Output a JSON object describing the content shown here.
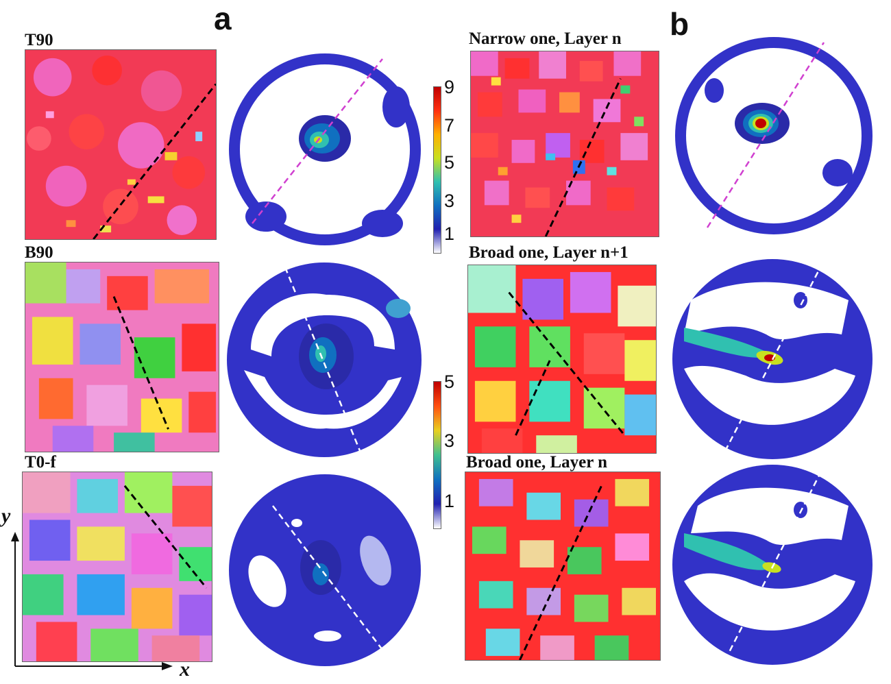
{
  "panel_labels": {
    "a": "a",
    "b": "b"
  },
  "map_labels": {
    "t90": "T90",
    "b90": "B90",
    "t0f": "T0-f",
    "narrow_n": "Narrow one, Layer n",
    "broad_n1": "Broad one, Layer n+1",
    "broad_n": "Broad one, Layer n"
  },
  "colorbar_upper": {
    "ticks": [
      "9",
      "7",
      "5",
      "3",
      "1"
    ],
    "colors": [
      "#c00000",
      "#ff3010",
      "#ffb000",
      "#c8e020",
      "#30c0b0",
      "#1070c0",
      "#2020b0",
      "#ffffff"
    ]
  },
  "colorbar_lower": {
    "ticks": [
      "5",
      "3",
      "1"
    ],
    "colors": [
      "#c00000",
      "#ff5010",
      "#e8d020",
      "#40c090",
      "#1070c0",
      "#2020b0",
      "#ffffff"
    ]
  },
  "axes": {
    "x": "x",
    "y": "y"
  },
  "colors": {
    "pole_blue": "#3232c8",
    "pole_dark_blue": "#2a2aa8",
    "ipf_red": "#f23a3a",
    "ipf_pink": "#f068c8",
    "ipf_green": "#5fe05f",
    "ipf_blue": "#4b6cf0",
    "dash_magenta": "#d040d0",
    "dash_black": "#000000",
    "dash_white": "#ffffff"
  }
}
